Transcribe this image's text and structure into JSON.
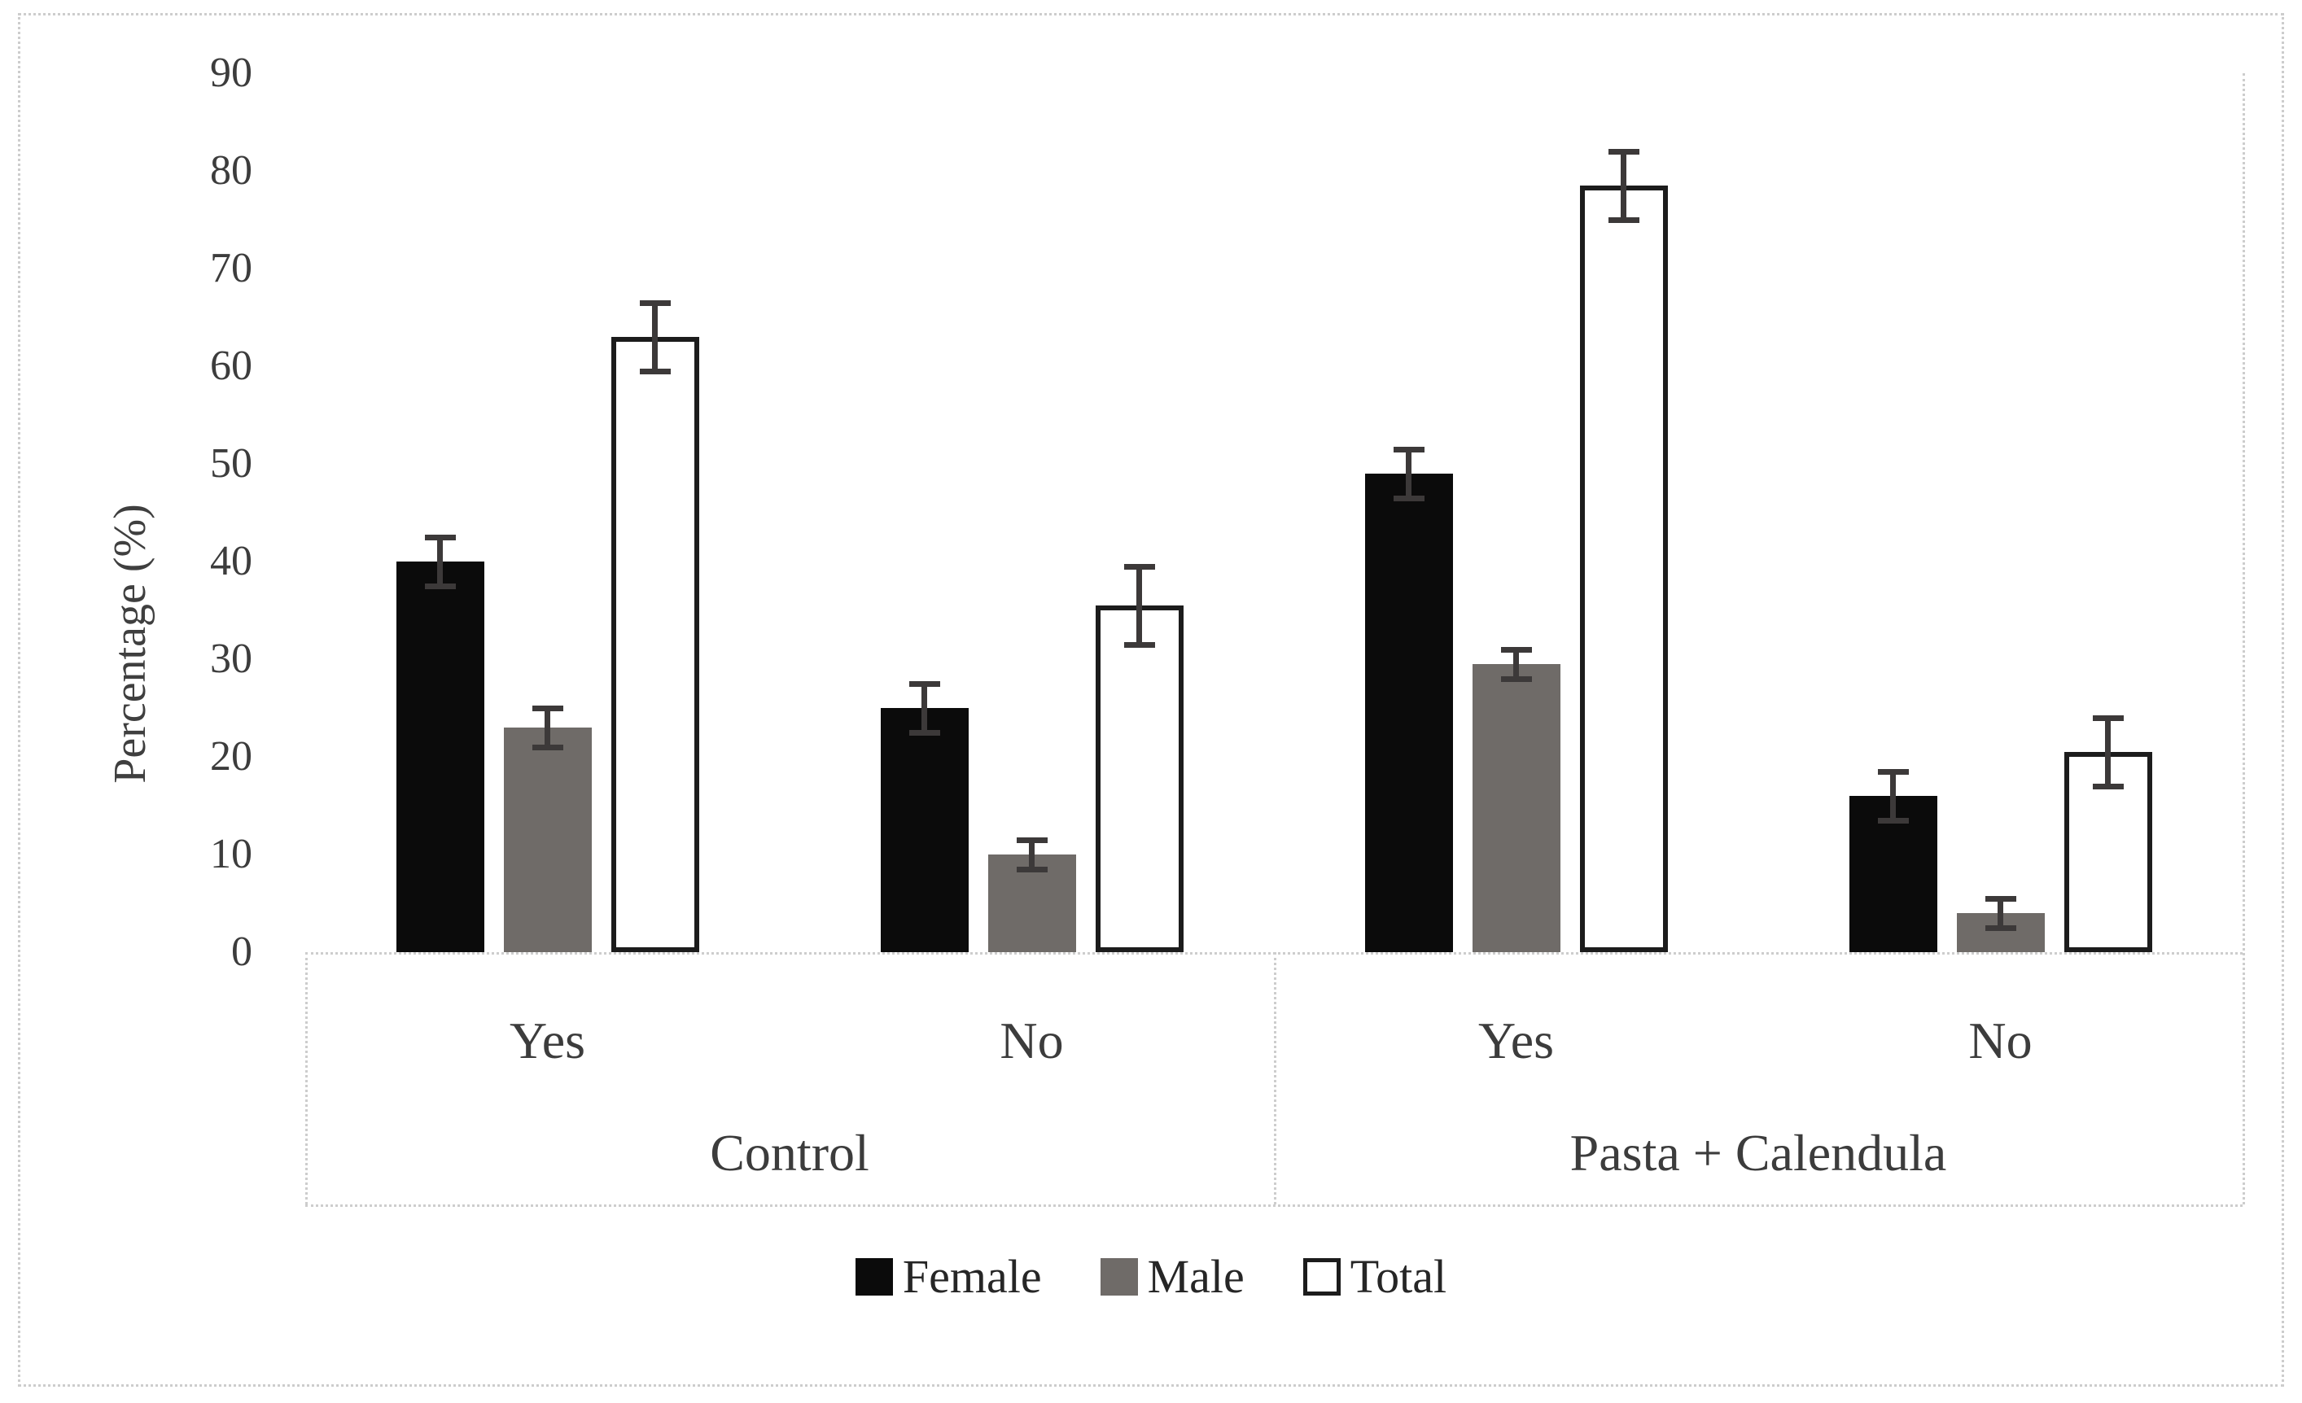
{
  "colors": {
    "female_fill": "#0b0b0b",
    "male_fill": "#6f6b68",
    "total_fill": "#ffffff",
    "total_border": "#1c1c1c",
    "error_bar": "#3c3939",
    "axis_line": "#cdcdcd",
    "text": "#3c3c3c"
  },
  "chart_data": {
    "type": "bar",
    "title": "",
    "xlabel": "",
    "ylabel": "Percentage (%)",
    "ylim": [
      0,
      90
    ],
    "ytick_step": 10,
    "ytick_labels": [
      "0",
      "10",
      "20",
      "30",
      "40",
      "50",
      "60",
      "70",
      "80",
      "90"
    ],
    "grid": false,
    "legend_position": "bottom",
    "series": [
      {
        "name": "Female",
        "fill": "#0b0b0b",
        "border": null
      },
      {
        "name": "Male",
        "fill": "#6f6b68",
        "border": null
      },
      {
        "name": "Total",
        "fill": "#ffffff",
        "border": "#1c1c1c"
      }
    ],
    "groups": [
      {
        "label": "Control",
        "categories": [
          {
            "label": "Yes",
            "values": [
              40,
              23,
              63
            ],
            "errors": [
              2.5,
              2,
              3.5
            ]
          },
          {
            "label": "No",
            "values": [
              25,
              10,
              35.5
            ],
            "errors": [
              2.5,
              1.5,
              4
            ]
          }
        ]
      },
      {
        "label": "Pasta + Calendula",
        "categories": [
          {
            "label": "Yes",
            "values": [
              49,
              29.5,
              78.5
            ],
            "errors": [
              2.5,
              1.5,
              3.5
            ]
          },
          {
            "label": "No",
            "values": [
              16,
              4,
              20.5
            ],
            "errors": [
              2.5,
              1.5,
              3.5
            ]
          }
        ]
      }
    ],
    "legend": [
      "Female",
      "Male",
      "Total"
    ]
  }
}
